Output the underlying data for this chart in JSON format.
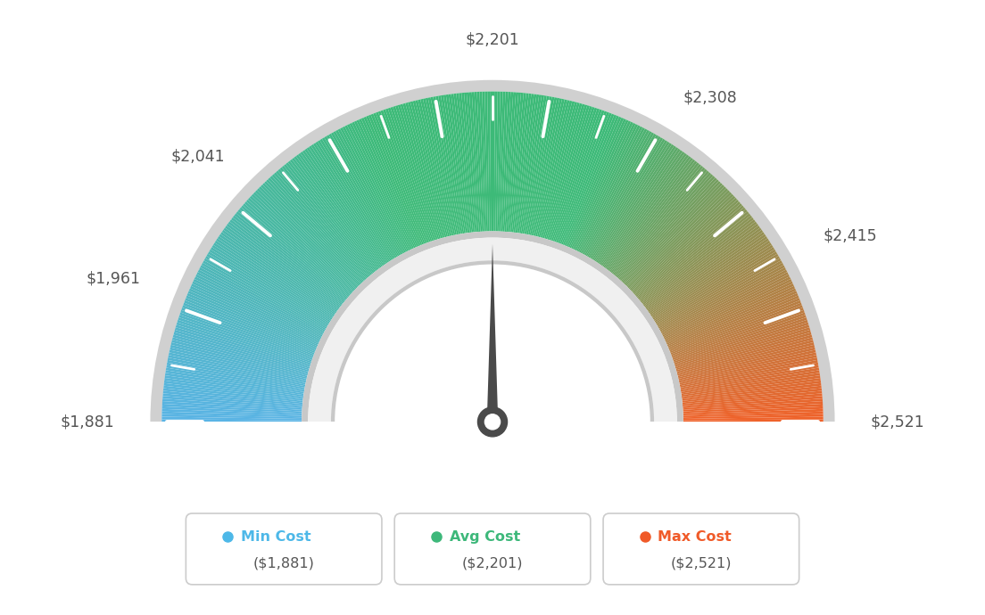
{
  "min_value": 1881,
  "avg_value": 2201,
  "max_value": 2521,
  "tick_labels": [
    "$1,881",
    "$1,961",
    "$2,041",
    "$2,201",
    "$2,308",
    "$2,415",
    "$2,521"
  ],
  "tick_values": [
    1881,
    1961,
    2041,
    2201,
    2308,
    2415,
    2521
  ],
  "legend": [
    {
      "label": "Min Cost",
      "value": "($1,881)",
      "color": "#4db8e8"
    },
    {
      "label": "Avg Cost",
      "value": "($2,201)",
      "color": "#3db87a"
    },
    {
      "label": "Max Cost",
      "value": "($2,521)",
      "color": "#f05a28"
    }
  ],
  "background_color": "#ffffff",
  "needle_color": "#505050"
}
